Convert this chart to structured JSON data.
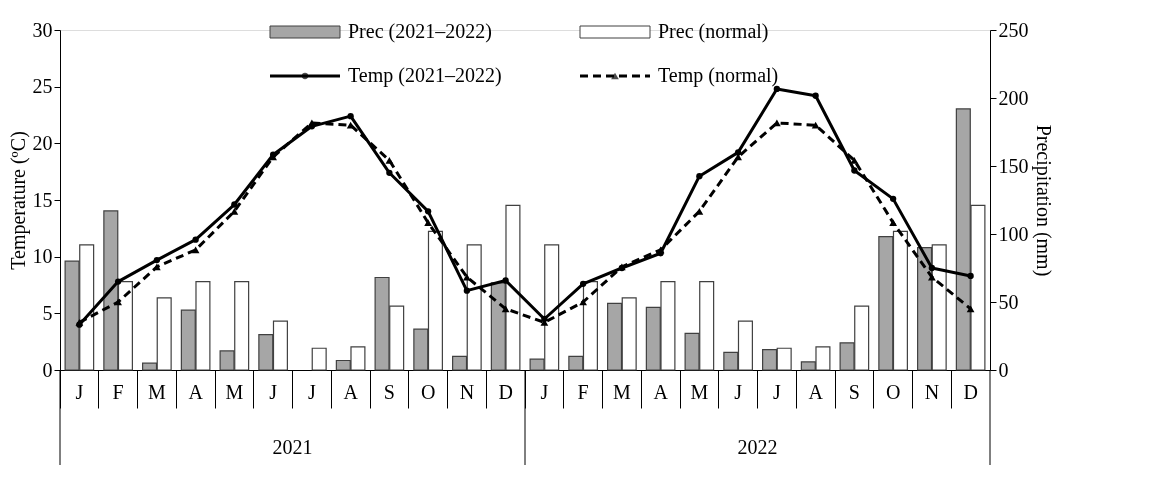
{
  "chart_data": {
    "type": "bar",
    "categories": [
      "J",
      "F",
      "M",
      "A",
      "M",
      "J",
      "J",
      "A",
      "S",
      "O",
      "N",
      "D",
      "J",
      "F",
      "M",
      "A",
      "M",
      "J",
      "J",
      "A",
      "S",
      "O",
      "N",
      "D"
    ],
    "ylabel": "Temperature (ºC)",
    "y2label": "Precipitation (mm)",
    "ylim": [
      0,
      30
    ],
    "yticks": [
      0,
      5,
      10,
      15,
      20,
      25,
      30
    ],
    "y2lim": [
      0,
      250
    ],
    "y2ticks": [
      0,
      50,
      100,
      150,
      200,
      250
    ],
    "series": [
      {
        "name": "Prec (2021–2022)",
        "type": "bar",
        "axis": "y2",
        "color": "#a6a6a6",
        "values": [
          80,
          117,
          5,
          44,
          14,
          26,
          null,
          7,
          68,
          30,
          10,
          64,
          8,
          10,
          49,
          46,
          27,
          13,
          15,
          6,
          20,
          98,
          90,
          192
        ]
      },
      {
        "name": "Prec (normal)",
        "type": "bar",
        "axis": "y2",
        "color": "#ffffff",
        "values": [
          92,
          65,
          53,
          65,
          65,
          36,
          16,
          17,
          47,
          102,
          92,
          121,
          92,
          65,
          53,
          65,
          65,
          36,
          16,
          17,
          47,
          102,
          92,
          121
        ]
      },
      {
        "name": "Temp (2021–2022)",
        "type": "line",
        "color": "#000000",
        "marker": "circle",
        "line_style": "solid",
        "values": [
          4.0,
          7.8,
          9.7,
          11.5,
          14.6,
          19.0,
          21.5,
          22.4,
          17.4,
          14.0,
          7.0,
          7.9,
          4.5,
          7.6,
          9.0,
          10.3,
          17.1,
          19.2,
          24.8,
          24.2,
          17.6,
          15.1,
          9.0,
          8.3
        ]
      },
      {
        "name": "Temp (normal)",
        "type": "line",
        "color": "#000000",
        "marker": "triangle",
        "line_style": "dashed",
        "values": [
          4.2,
          6.0,
          9.1,
          10.6,
          14.0,
          18.8,
          21.8,
          21.6,
          18.5,
          13.0,
          8.2,
          5.4,
          4.2,
          6.0,
          9.1,
          10.6,
          14.0,
          18.8,
          21.8,
          21.6,
          18.5,
          13.0,
          8.2,
          5.4
        ]
      }
    ],
    "annotations": [
      "2021",
      "2022"
    ],
    "legend": "top",
    "grid": false
  }
}
